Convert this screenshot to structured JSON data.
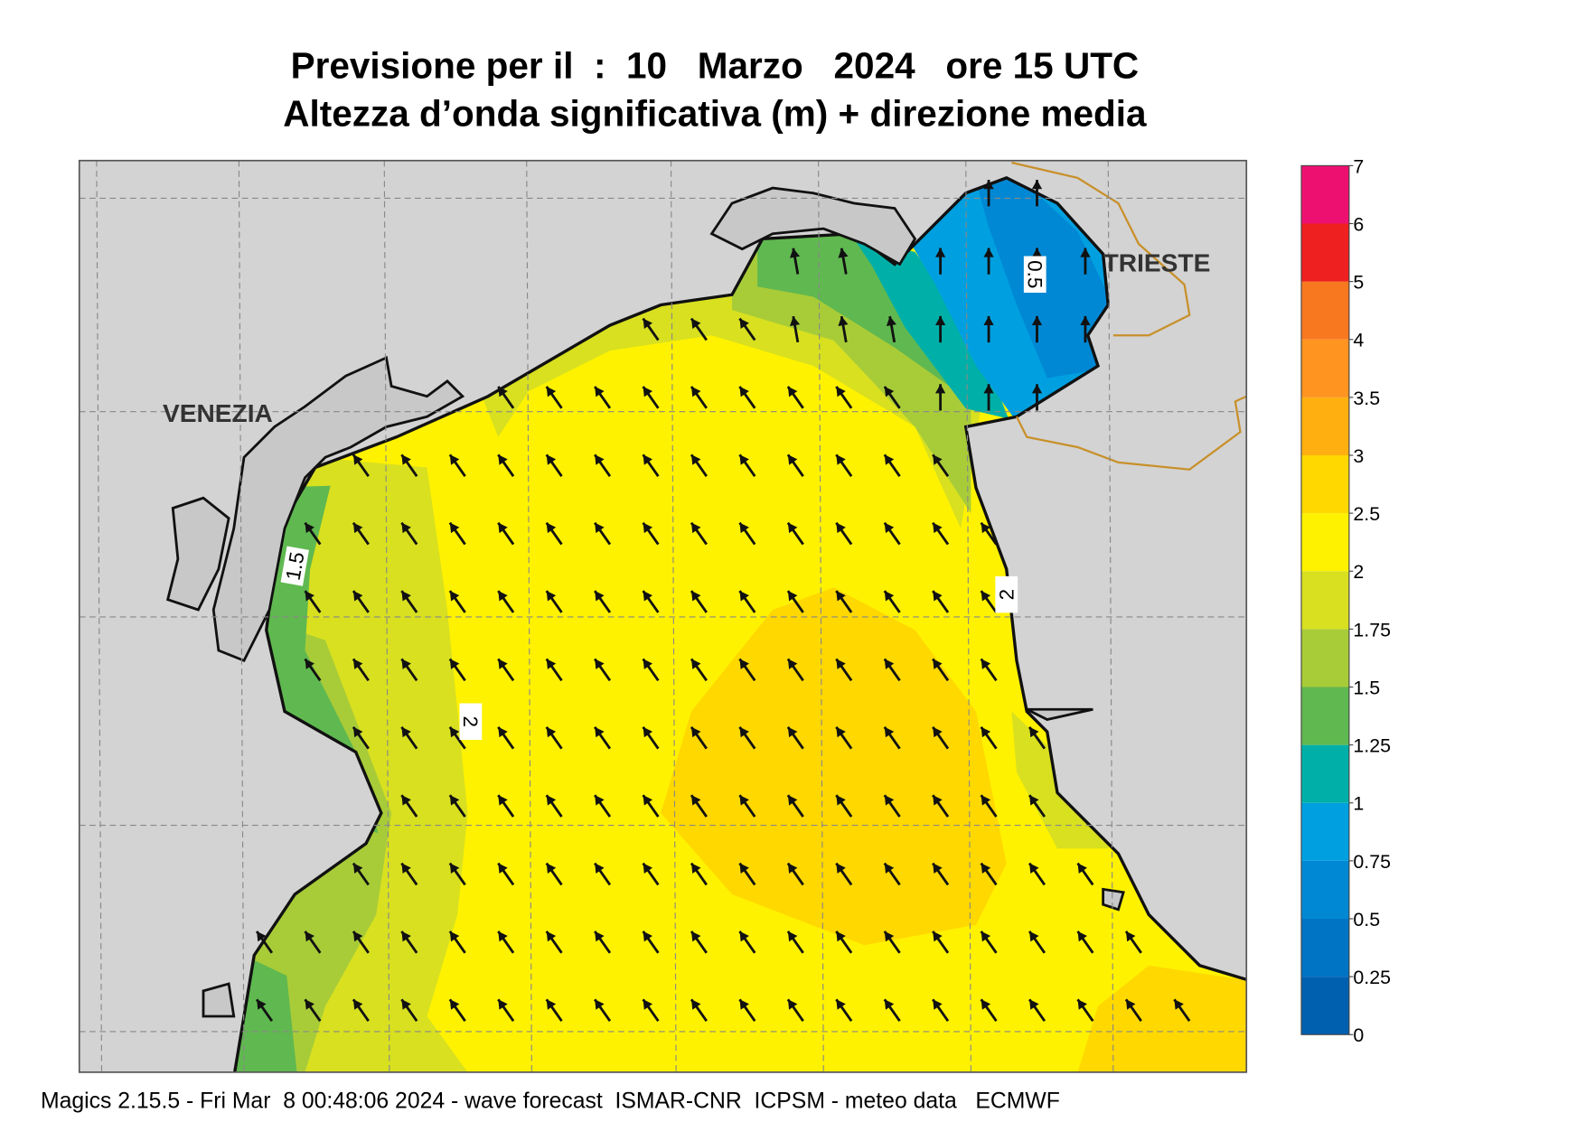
{
  "title": [
    "Previsione per il  :  10   Marzo   2024   ore 15 UTC",
    "Altezza d’onda significativa (m) + direzione media"
  ],
  "places": [
    "VENEZIA",
    "TRIESTE"
  ],
  "contour_labels": [
    0.5,
    1.5,
    2,
    2
  ],
  "colorbar": {
    "ticks": [
      0,
      0.25,
      0.5,
      0.75,
      1,
      1.25,
      1.5,
      1.75,
      2,
      2.5,
      3,
      3.5,
      4,
      5,
      6,
      7
    ],
    "colors": [
      "#0060b0",
      "#0074c4",
      "#0088d4",
      "#00a0e0",
      "#00b0a8",
      "#60b850",
      "#a8cc38",
      "#d8e020",
      "#fff200",
      "#ffd800",
      "#ffb010",
      "#ff9420",
      "#f87820",
      "#ee2020",
      "#ee1070"
    ]
  },
  "footer": "Magics 2.15.5 - Fri Mar  8 00:48:06 2024 - wave forecast  ISMAR-CNR  ICPSM - meteo data   ECMWF"
}
